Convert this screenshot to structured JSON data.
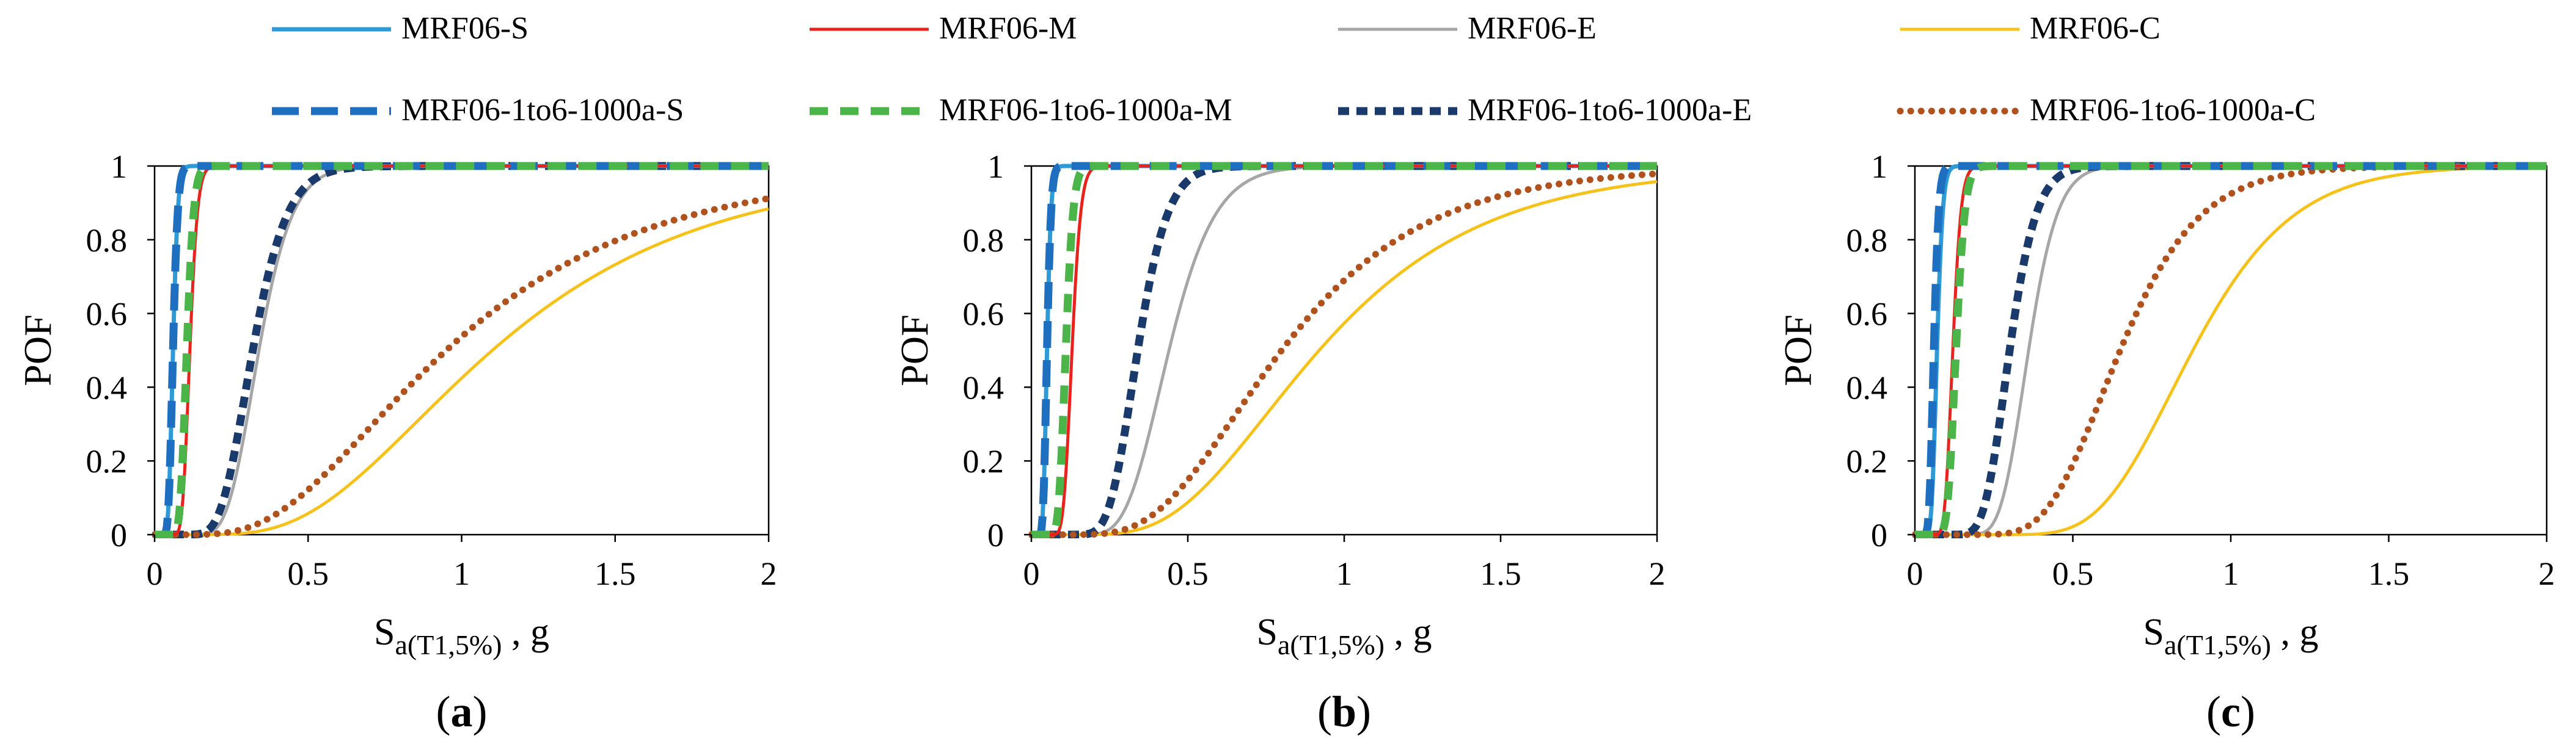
{
  "legend": [
    {
      "label": "MRF06-S",
      "color": "#2E9BD6",
      "style": "solid"
    },
    {
      "label": "MRF06-M",
      "color": "#E8231E",
      "style": "solid"
    },
    {
      "label": "MRF06-E",
      "color": "#A6A6A6",
      "style": "solid"
    },
    {
      "label": "MRF06-C",
      "color": "#F5C21B",
      "style": "solid"
    },
    {
      "label": "MRF06-1to6-1000a-S",
      "color": "#1F6FC0",
      "style": "longdash"
    },
    {
      "label": "MRF06-1to6-1000a-M",
      "color": "#4CB549",
      "style": "dash"
    },
    {
      "label": "MRF06-1to6-1000a-E",
      "color": "#1A3A6B",
      "style": "shortdash"
    },
    {
      "label": "MRF06-1to6-1000a-C",
      "color": "#B0521E",
      "style": "dot"
    }
  ],
  "chart_data": [
    {
      "type": "line",
      "panel_label": "(a)",
      "xlabel_main": "S",
      "xlabel_sub": "a(T1,5%)",
      "xlabel_tail": ", g",
      "ylabel": "POF",
      "xlim": [
        0,
        2
      ],
      "ylim": [
        0,
        1
      ],
      "xticks": [
        "0",
        "0.5",
        "1",
        "1.5",
        "2"
      ],
      "yticks": [
        "0",
        "0.2",
        "0.4",
        "0.6",
        "0.8",
        "1"
      ],
      "series": [
        {
          "name": "MRF06-S",
          "median": 0.06,
          "beta": 0.2
        },
        {
          "name": "MRF06-M",
          "median": 0.115,
          "beta": 0.17
        },
        {
          "name": "MRF06-E",
          "median": 0.34,
          "beta": 0.25
        },
        {
          "name": "MRF06-C",
          "median": 1.1,
          "beta": 0.5
        },
        {
          "name": "MRF06-1to6-1000a-S",
          "median": 0.06,
          "beta": 0.2
        },
        {
          "name": "MRF06-1to6-1000a-M",
          "median": 0.105,
          "beta": 0.17
        },
        {
          "name": "MRF06-1to6-1000a-E",
          "median": 0.32,
          "beta": 0.27
        },
        {
          "name": "MRF06-1to6-1000a-C",
          "median": 0.95,
          "beta": 0.55
        }
      ]
    },
    {
      "type": "line",
      "panel_label": "(b)",
      "xlabel_main": "S",
      "xlabel_sub": "a(T1,5%)",
      "xlabel_tail": ", g",
      "ylabel": "POF",
      "xlim": [
        0,
        2
      ],
      "ylim": [
        0,
        1
      ],
      "xticks": [
        "0",
        "0.5",
        "1",
        "1.5",
        "2"
      ],
      "yticks": [
        "0",
        "0.2",
        "0.4",
        "0.6",
        "0.8",
        "1"
      ],
      "series": [
        {
          "name": "MRF06-S",
          "median": 0.05,
          "beta": 0.2
        },
        {
          "name": "MRF06-M",
          "median": 0.13,
          "beta": 0.17
        },
        {
          "name": "MRF06-E",
          "median": 0.44,
          "beta": 0.26
        },
        {
          "name": "MRF06-C",
          "median": 0.92,
          "beta": 0.45
        },
        {
          "name": "MRF06-1to6-1000a-S",
          "median": 0.05,
          "beta": 0.2
        },
        {
          "name": "MRF06-1to6-1000a-M",
          "median": 0.11,
          "beta": 0.17
        },
        {
          "name": "MRF06-1to6-1000a-E",
          "median": 0.34,
          "beta": 0.22
        },
        {
          "name": "MRF06-1to6-1000a-C",
          "median": 0.8,
          "beta": 0.45
        }
      ]
    },
    {
      "type": "line",
      "panel_label": "(c)",
      "xlabel_main": "S",
      "xlabel_sub": "a(T1,5%)",
      "xlabel_tail": ", g",
      "ylabel": "POF",
      "xlim": [
        0,
        2
      ],
      "ylim": [
        0,
        1
      ],
      "xticks": [
        "0",
        "0.5",
        "1",
        "1.5",
        "2"
      ],
      "yticks": [
        "0",
        "0.2",
        "0.4",
        "0.6",
        "0.8",
        "1"
      ],
      "series": [
        {
          "name": "MRF06-S",
          "median": 0.07,
          "beta": 0.2
        },
        {
          "name": "MRF06-M",
          "median": 0.12,
          "beta": 0.17
        },
        {
          "name": "MRF06-E",
          "median": 0.36,
          "beta": 0.2
        },
        {
          "name": "MRF06-C",
          "median": 0.88,
          "beta": 0.28
        },
        {
          "name": "MRF06-1to6-1000a-S",
          "median": 0.06,
          "beta": 0.2
        },
        {
          "name": "MRF06-1to6-1000a-M",
          "median": 0.13,
          "beta": 0.17
        },
        {
          "name": "MRF06-1to6-1000a-E",
          "median": 0.3,
          "beta": 0.22
        },
        {
          "name": "MRF06-1to6-1000a-C",
          "median": 0.65,
          "beta": 0.3
        }
      ]
    }
  ]
}
